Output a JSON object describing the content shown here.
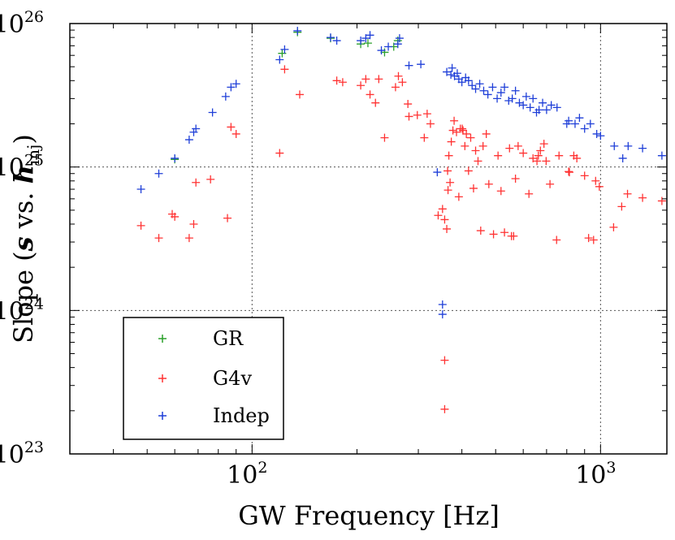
{
  "chart_data": {
    "type": "scatter",
    "x_scale": "log",
    "y_scale": "log",
    "xlim": [
      30,
      1550
    ],
    "ylim": [
      1e+23,
      1e+26
    ],
    "grid": true,
    "legend_position": "bottom-left",
    "xlabel": "GW Frequency [Hz]",
    "ylabel_parts": [
      "Slope (",
      "s",
      " vs. ",
      "h",
      "inj",
      ")"
    ],
    "x_ticks": [
      {
        "value": 100,
        "base": "10",
        "exp": "2"
      },
      {
        "value": 1000,
        "base": "10",
        "exp": "3"
      }
    ],
    "y_ticks": [
      {
        "value": 1e+23,
        "base": "10",
        "exp": "23"
      },
      {
        "value": 1e+24,
        "base": "10",
        "exp": "24"
      },
      {
        "value": 1e+25,
        "base": "10",
        "exp": "25"
      },
      {
        "value": 1e+26,
        "base": "10",
        "exp": "26"
      }
    ],
    "series": [
      {
        "name": "GR",
        "color": "#2ca02c",
        "points": [
          [
            60,
            1.13e+25
          ],
          [
            122,
            6.2e+25
          ],
          [
            135,
            8.7e+25
          ],
          [
            168,
            7.9e+25
          ],
          [
            205,
            7.2e+25
          ],
          [
            215,
            7.3e+25
          ],
          [
            240,
            6.3e+25
          ],
          [
            255,
            6.9e+25
          ],
          [
            262,
            7.6e+25
          ]
        ]
      },
      {
        "name": "G4v",
        "color": "#ff3333",
        "points": [
          [
            48,
            3.9e+24
          ],
          [
            54,
            3.2e+24
          ],
          [
            59,
            4.7e+24
          ],
          [
            60,
            4.5e+24
          ],
          [
            66,
            3.2e+24
          ],
          [
            68,
            4e+24
          ],
          [
            69,
            7.8e+24
          ],
          [
            76,
            8.2e+24
          ],
          [
            85,
            4.4e+24
          ],
          [
            87,
            1.9e+25
          ],
          [
            90,
            1.7e+25
          ],
          [
            120,
            1.25e+25
          ],
          [
            124,
            4.8e+25
          ],
          [
            137,
            3.2e+25
          ],
          [
            175,
            4e+25
          ],
          [
            182,
            3.9e+25
          ],
          [
            205,
            3.7e+25
          ],
          [
            212,
            4.1e+25
          ],
          [
            218,
            3.2e+25
          ],
          [
            226,
            2.8e+25
          ],
          [
            231,
            4.1e+25
          ],
          [
            240,
            1.6e+25
          ],
          [
            258,
            3.6e+25
          ],
          [
            263,
            4.3e+25
          ],
          [
            270,
            3.9e+25
          ],
          [
            280,
            2.75e+25
          ],
          [
            282,
            2.25e+25
          ],
          [
            298,
            2.3e+25
          ],
          [
            312,
            1.6e+25
          ],
          [
            318,
            2.35e+25
          ],
          [
            325,
            2e+25
          ],
          [
            342,
            4.6e+24
          ],
          [
            352,
            5.1e+24
          ],
          [
            357,
            4.3e+24
          ],
          [
            362,
            3.7e+24
          ],
          [
            364,
            9.4e+24
          ],
          [
            365,
            6.9e+24
          ],
          [
            367,
            1.2e+25
          ],
          [
            370,
            7.8e+24
          ],
          [
            373,
            1.5e+25
          ],
          [
            377,
            1.8e+25
          ],
          [
            380,
            2.1e+25
          ],
          [
            386,
            1.75e+25
          ],
          [
            392,
            6.2e+24
          ],
          [
            396,
            1.85e+25
          ],
          [
            401,
            1.85e+25
          ],
          [
            403,
            1.8e+25
          ],
          [
            408,
            1.4e+25
          ],
          [
            412,
            1.7e+25
          ],
          [
            418,
            9.4e+24
          ],
          [
            424,
            1.6e+25
          ],
          [
            432,
            7.1e+24
          ],
          [
            438,
            1.3e+25
          ],
          [
            445,
            1.1e+25
          ],
          [
            453,
            3.6e+24
          ],
          [
            460,
            1.4e+25
          ],
          [
            470,
            1.7e+25
          ],
          [
            478,
            7.6e+24
          ],
          [
            493,
            3.4e+24
          ],
          [
            508,
            1.2e+25
          ],
          [
            518,
            6.8e+24
          ],
          [
            530,
            3.5e+24
          ],
          [
            548,
            1.35e+25
          ],
          [
            555,
            3.3e+24
          ],
          [
            563,
            3.3e+24
          ],
          [
            570,
            8.3e+24
          ],
          [
            580,
            1.4e+25
          ],
          [
            600,
            1.25e+25
          ],
          [
            623,
            6.5e+24
          ],
          [
            640,
            1.15e+25
          ],
          [
            657,
            1.1e+25
          ],
          [
            663,
            1.2e+25
          ],
          [
            672,
            1.3e+25
          ],
          [
            688,
            1.45e+25
          ],
          [
            698,
            1.1e+25
          ],
          [
            716,
            7.6e+24
          ],
          [
            748,
            3.1e+24
          ],
          [
            760,
            1.2e+25
          ],
          [
            810,
            9.3e+24
          ],
          [
            814,
            9.2e+24
          ],
          [
            838,
            1.2e+25
          ],
          [
            855,
            1.15e+25
          ],
          [
            900,
            8.7e+24
          ],
          [
            924,
            3.2e+24
          ],
          [
            955,
            3.1e+24
          ],
          [
            968,
            8e+24
          ],
          [
            992,
            7.3e+24
          ],
          [
            1090,
            3.8e+24
          ],
          [
            1150,
            5.3e+24
          ],
          [
            1195,
            6.5e+24
          ],
          [
            1320,
            6.1e+24
          ],
          [
            1500,
            5.8e+24
          ],
          [
            357,
            4.5e+23
          ],
          [
            357,
            2.05e+23
          ]
        ]
      },
      {
        "name": "Indep",
        "color": "#1f3fd8",
        "points": [
          [
            48,
            7e+24
          ],
          [
            54,
            9e+24
          ],
          [
            60,
            1.15e+25
          ],
          [
            66,
            1.55e+25
          ],
          [
            68,
            1.75e+25
          ],
          [
            69,
            1.85e+25
          ],
          [
            77,
            2.4e+25
          ],
          [
            84,
            3.1e+25
          ],
          [
            87,
            3.6e+25
          ],
          [
            90,
            3.8e+25
          ],
          [
            120,
            5.6e+25
          ],
          [
            124,
            6.6e+25
          ],
          [
            135,
            8.9e+25
          ],
          [
            168,
            8e+25
          ],
          [
            175,
            7.6e+25
          ],
          [
            205,
            7.6e+25
          ],
          [
            212,
            7.9e+25
          ],
          [
            218,
            8.3e+25
          ],
          [
            235,
            6.5e+25
          ],
          [
            246,
            6.9e+25
          ],
          [
            262,
            7.2e+25
          ],
          [
            265,
            7.9e+25
          ],
          [
            282,
            5.1e+25
          ],
          [
            305,
            5.2e+25
          ],
          [
            340,
            9.2e+24
          ],
          [
            352,
            1.1e+24
          ],
          [
            352,
            9.4e+23
          ],
          [
            362,
            4.6e+25
          ],
          [
            372,
            4.4e+25
          ],
          [
            375,
            4.9e+25
          ],
          [
            381,
            4.3e+25
          ],
          [
            388,
            4.5e+25
          ],
          [
            392,
            4.1e+25
          ],
          [
            400,
            3.9e+25
          ],
          [
            410,
            4.2e+25
          ],
          [
            418,
            4e+25
          ],
          [
            428,
            3.7e+25
          ],
          [
            438,
            3.5e+25
          ],
          [
            450,
            3.8e+25
          ],
          [
            462,
            3.4e+25
          ],
          [
            475,
            3.2e+25
          ],
          [
            490,
            3.6e+25
          ],
          [
            505,
            3e+25
          ],
          [
            518,
            3.3e+25
          ],
          [
            530,
            3.6e+25
          ],
          [
            545,
            2.9e+25
          ],
          [
            558,
            3e+25
          ],
          [
            570,
            3.4e+25
          ],
          [
            585,
            2.8e+25
          ],
          [
            600,
            2.7e+25
          ],
          [
            612,
            3.1e+25
          ],
          [
            628,
            2.6e+25
          ],
          [
            640,
            3e+25
          ],
          [
            655,
            2.4e+25
          ],
          [
            666,
            2.5e+25
          ],
          [
            682,
            2.8e+25
          ],
          [
            700,
            2.5e+25
          ],
          [
            722,
            2.7e+25
          ],
          [
            750,
            2.6e+25
          ],
          [
            800,
            2e+25
          ],
          [
            810,
            2.1e+25
          ],
          [
            845,
            2e+25
          ],
          [
            870,
            2.2e+25
          ],
          [
            900,
            1.85e+25
          ],
          [
            935,
            2e+25
          ],
          [
            975,
            1.7e+25
          ],
          [
            1000,
            1.65e+25
          ],
          [
            1095,
            1.4e+25
          ],
          [
            1158,
            1.15e+25
          ],
          [
            1200,
            1.4e+25
          ],
          [
            1320,
            1.35e+25
          ],
          [
            1500,
            1.2e+25
          ]
        ]
      }
    ]
  }
}
